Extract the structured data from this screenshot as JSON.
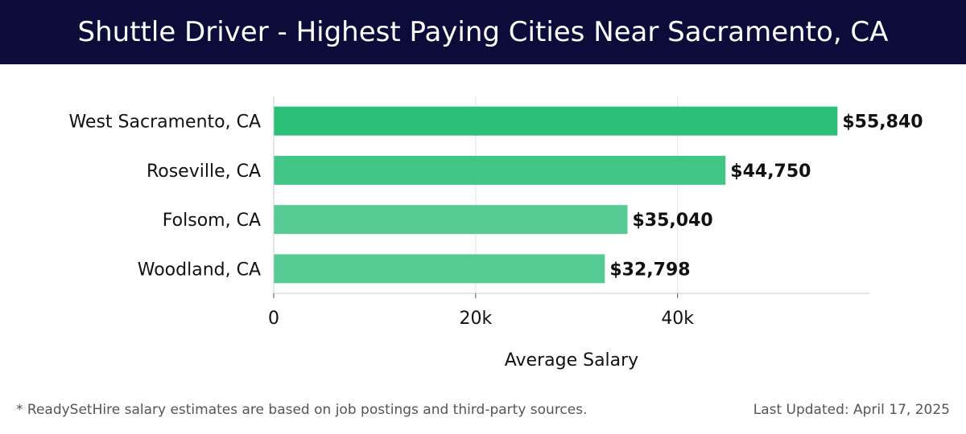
{
  "header": {
    "title": "Shuttle Driver - Highest Paying Cities Near Sacramento, CA"
  },
  "footer": {
    "note": "* ReadySetHire salary estimates are based on job postings and third-party sources.",
    "updated": "Last Updated: April 17, 2025"
  },
  "colors": {
    "header_bg": "#0b0c3a",
    "bar_colors": [
      "#2bbf78",
      "#40c587",
      "#56cb94",
      "#56cb94"
    ],
    "grid": "#e3e3e3"
  },
  "chart_data": {
    "type": "bar",
    "orientation": "horizontal",
    "categories": [
      "West Sacramento, CA",
      "Roseville, CA",
      "Folsom, CA",
      "Woodland, CA"
    ],
    "values": [
      55840,
      44750,
      35040,
      32798
    ],
    "value_labels": [
      "$55,840",
      "$44,750",
      "$35,040",
      "$32,798"
    ],
    "xlabel": "Average Salary",
    "ylabel": "",
    "xlim": [
      0,
      59000
    ],
    "x_ticks": [
      0,
      20000,
      40000
    ],
    "x_tick_labels": [
      "0",
      "20k",
      "40k"
    ],
    "grid": true
  }
}
